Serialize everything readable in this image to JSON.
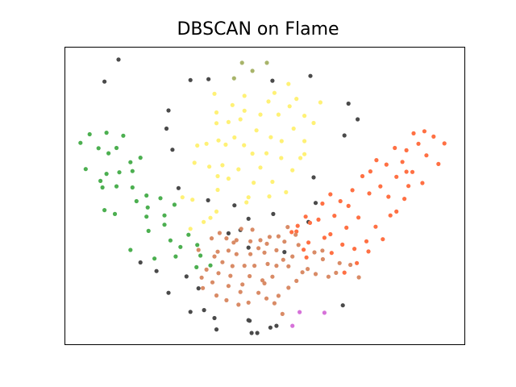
{
  "chart_data": {
    "type": "scatter",
    "title": "DBSCAN on Flame",
    "xlabel": "",
    "ylabel": "",
    "xlim": [
      0,
      100
    ],
    "ylim": [
      0,
      100
    ],
    "grid": false,
    "axes_ticks": false,
    "series": [
      {
        "color": "#4a4a4a",
        "points": [
          [
            13.5,
            95.7
          ],
          [
            10,
            88.3
          ],
          [
            31.5,
            88.8
          ],
          [
            36,
            89.1
          ],
          [
            61.5,
            90.2
          ],
          [
            52,
            88.6
          ],
          [
            71,
            80.9
          ],
          [
            26,
            78.6
          ],
          [
            25.5,
            72.5
          ],
          [
            27,
            65.4
          ],
          [
            73.3,
            75.6
          ],
          [
            70,
            70.2
          ],
          [
            28.5,
            52.5
          ],
          [
            62.3,
            56.1
          ],
          [
            35.9,
            48.4
          ],
          [
            42.5,
            46.7
          ],
          [
            46,
            42.2
          ],
          [
            52.2,
            43.8
          ],
          [
            62.8,
            47.5
          ],
          [
            44,
            38.4
          ],
          [
            61,
            41.1
          ],
          [
            41,
            37.3
          ],
          [
            46,
            32.5
          ],
          [
            55,
            31
          ],
          [
            19,
            27.5
          ],
          [
            23,
            24.6
          ],
          [
            30.5,
            22.8
          ],
          [
            33.5,
            18.8
          ],
          [
            34.9,
            11.5
          ],
          [
            26,
            17.3
          ],
          [
            31.5,
            10.9
          ],
          [
            37.5,
            8.8
          ],
          [
            38,
            5
          ],
          [
            46,
            8.1
          ],
          [
            48.2,
            3.8
          ],
          [
            46.3,
            7.9
          ],
          [
            51.5,
            5.6
          ],
          [
            46.8,
            3.8
          ],
          [
            53,
            6.2
          ],
          [
            69.6,
            13.1
          ]
        ]
      },
      {
        "color": "#a8b46a",
        "points": [
          [
            44.4,
            94.6
          ],
          [
            50.6,
            94.6
          ],
          [
            42.4,
            89.4
          ],
          [
            47,
            91.9
          ]
        ]
      },
      {
        "color": "#fff176",
        "points": [
          [
            52.5,
            84.5
          ],
          [
            56,
            87.5
          ],
          [
            58,
            82.5
          ],
          [
            53.5,
            77.2
          ],
          [
            56.3,
            80
          ],
          [
            60,
            76.8
          ],
          [
            57.3,
            72.5
          ],
          [
            60,
            68.3
          ],
          [
            62.3,
            74.4
          ],
          [
            64,
            81.3
          ],
          [
            51,
            81.6
          ],
          [
            49,
            77.2
          ],
          [
            48,
            71.9
          ],
          [
            45,
            83.5
          ],
          [
            45,
            78.5
          ],
          [
            42,
            80.4
          ],
          [
            44,
            75.6
          ],
          [
            41,
            74.7
          ],
          [
            37.5,
            84.2
          ],
          [
            38,
            77.9
          ],
          [
            38,
            74.3
          ],
          [
            38.5,
            68.5
          ],
          [
            40.3,
            67.1
          ],
          [
            42.5,
            69.5
          ],
          [
            44.9,
            66.9
          ],
          [
            47,
            64.1
          ],
          [
            50.5,
            64.2
          ],
          [
            51.6,
            69.6
          ],
          [
            54.3,
            68.3
          ],
          [
            54.2,
            62.6
          ],
          [
            49,
            59.4
          ],
          [
            47.3,
            54.3
          ],
          [
            52,
            54.6
          ],
          [
            57,
            58.5
          ],
          [
            59,
            62.6
          ],
          [
            60,
            63.9
          ],
          [
            46,
            49.4
          ],
          [
            51.2,
            49.7
          ],
          [
            55.4,
            51.1
          ],
          [
            35.5,
            67.4
          ],
          [
            33.2,
            66.8
          ],
          [
            32.5,
            61
          ],
          [
            36.2,
            59.7
          ],
          [
            39.5,
            60.2
          ],
          [
            41,
            55.7
          ],
          [
            43.5,
            58.8
          ],
          [
            38.3,
            56.5
          ],
          [
            32,
            48.6
          ],
          [
            29.5,
            49.4
          ],
          [
            38.3,
            51.9
          ],
          [
            36.5,
            42.5
          ],
          [
            34.8,
            41.1
          ],
          [
            31.5,
            38.8
          ],
          [
            38,
            44.6
          ],
          [
            45.5,
            47.7
          ]
        ]
      },
      {
        "color": "#4caf50",
        "points": [
          [
            4,
            67.7
          ],
          [
            6.3,
            70.6
          ],
          [
            10.5,
            71.1
          ],
          [
            13,
            66
          ],
          [
            14.7,
            70.1
          ],
          [
            8.5,
            65.9
          ],
          [
            11,
            64.2
          ],
          [
            5.3,
            58.9
          ],
          [
            10.5,
            57.3
          ],
          [
            13.7,
            57.8
          ],
          [
            16.5,
            61.2
          ],
          [
            19,
            62.7
          ],
          [
            17,
            58.2
          ],
          [
            13,
            53.1
          ],
          [
            17,
            52.7
          ],
          [
            20.5,
            50
          ],
          [
            24,
            49.1
          ],
          [
            27.5,
            46.9
          ],
          [
            25,
            43.3
          ],
          [
            20.8,
            46
          ],
          [
            18,
            48.1
          ],
          [
            9.5,
            52.7
          ],
          [
            9,
            54.9
          ],
          [
            12.6,
            43.8
          ],
          [
            10,
            45.1
          ],
          [
            20.5,
            42.9
          ],
          [
            21,
            38.1
          ],
          [
            25,
            40.2
          ],
          [
            26.5,
            34.9
          ],
          [
            31,
            36.8
          ],
          [
            29,
            32.7
          ],
          [
            33.2,
            33.4
          ],
          [
            34,
            29.8
          ],
          [
            33,
            25.9
          ],
          [
            36.5,
            26.5
          ],
          [
            16.5,
            31.7
          ],
          [
            22.5,
            28.8
          ],
          [
            27.8,
            29.5
          ]
        ]
      },
      {
        "color": "#ff7043",
        "points": [
          [
            95,
            67.5
          ],
          [
            93.5,
            60.6
          ],
          [
            90.5,
            63.5
          ],
          [
            88.5,
            67.4
          ],
          [
            90,
            71.6
          ],
          [
            85.5,
            65.2
          ],
          [
            87.3,
            70.9
          ],
          [
            82.6,
            66
          ],
          [
            84.5,
            61.3
          ],
          [
            87,
            57.9
          ],
          [
            89.5,
            54.2
          ],
          [
            86,
            53.2
          ],
          [
            83,
            56.3
          ],
          [
            80.5,
            60.4
          ],
          [
            78,
            61.9
          ],
          [
            76.5,
            58.1
          ],
          [
            74.5,
            56.5
          ],
          [
            81,
            49.6
          ],
          [
            83,
            44.6
          ],
          [
            85,
            48.9
          ],
          [
            81.5,
            43.3
          ],
          [
            79,
            53.1
          ],
          [
            76.2,
            50.7
          ],
          [
            72,
            51.8
          ],
          [
            71,
            46.5
          ],
          [
            73.5,
            42.6
          ],
          [
            77.8,
            39.5
          ],
          [
            79.6,
            35.3
          ],
          [
            75.5,
            34.6
          ],
          [
            72.5,
            32.1
          ],
          [
            70.5,
            39.2
          ],
          [
            67.5,
            43.2
          ],
          [
            69,
            48.1
          ],
          [
            66.5,
            50.4
          ],
          [
            64.5,
            47.3
          ],
          [
            63.5,
            41.9
          ],
          [
            65,
            35.8
          ],
          [
            61.4,
            40.8
          ],
          [
            56.8,
            37.7
          ],
          [
            58,
            37.9
          ],
          [
            61,
            34.2
          ],
          [
            59.8,
            31.8
          ],
          [
            60.5,
            29.2
          ],
          [
            66.5,
            37
          ],
          [
            69.5,
            33.5
          ],
          [
            66.8,
            30.7
          ],
          [
            70,
            24.1
          ],
          [
            76,
            31.2
          ],
          [
            73.1,
            27.3
          ],
          [
            58.3,
            39.8
          ],
          [
            60.3,
            42.9
          ],
          [
            85.5,
            58
          ],
          [
            92.3,
            69.8
          ]
        ]
      },
      {
        "color": "#d98b66",
        "points": [
          [
            40.5,
            35.6
          ],
          [
            47,
            38.5
          ],
          [
            49,
            35
          ],
          [
            53.5,
            36.3
          ],
          [
            55.8,
            39.4
          ],
          [
            57.8,
            36.8
          ],
          [
            58.5,
            33.4
          ],
          [
            57,
            29.5
          ],
          [
            56,
            26.2
          ],
          [
            53,
            26.4
          ],
          [
            52,
            22.7
          ],
          [
            50,
            20.5
          ],
          [
            46.3,
            22.9
          ],
          [
            45,
            26.4
          ],
          [
            42,
            26.3
          ],
          [
            43,
            30.3
          ],
          [
            46.5,
            30.3
          ],
          [
            50,
            30.8
          ],
          [
            53,
            31.6
          ],
          [
            55,
            34.5
          ],
          [
            51.3,
            36.1
          ],
          [
            48.5,
            32.3
          ],
          [
            46.5,
            34.6
          ],
          [
            44.2,
            38.8
          ],
          [
            43,
            35
          ],
          [
            41,
            31.5
          ],
          [
            39.5,
            27.6
          ],
          [
            38.3,
            31.1
          ],
          [
            36.8,
            35.6
          ],
          [
            41.5,
            23
          ],
          [
            38.5,
            23.9
          ],
          [
            41,
            19.6
          ],
          [
            44,
            17.6
          ],
          [
            44.5,
            20.1
          ],
          [
            48.5,
            17.3
          ],
          [
            50.5,
            15.4
          ],
          [
            52.5,
            13.8
          ],
          [
            54.5,
            10.2
          ],
          [
            53.5,
            16.3
          ],
          [
            56,
            19
          ],
          [
            58,
            21.3
          ],
          [
            59.5,
            24.2
          ],
          [
            62.8,
            23.6
          ],
          [
            64.6,
            28.6
          ],
          [
            66,
            22.7
          ],
          [
            68.8,
            27.3
          ],
          [
            71.5,
            26.7
          ],
          [
            73.6,
            22.5
          ],
          [
            64.5,
            31.5
          ],
          [
            62.5,
            30.9
          ],
          [
            33.5,
            31.7
          ],
          [
            35.5,
            25.1
          ],
          [
            37,
            20.8
          ],
          [
            40.5,
            14.8
          ],
          [
            38,
            16.4
          ],
          [
            43.5,
            13.3
          ],
          [
            46,
            14
          ],
          [
            49.5,
            21.5
          ],
          [
            47.5,
            26.4
          ],
          [
            50.8,
            27
          ],
          [
            37.5,
            29.5
          ],
          [
            34.3,
            22.4
          ],
          [
            38.8,
            37.4
          ],
          [
            42.3,
            34.2
          ],
          [
            50.6,
            33.8
          ],
          [
            54.7,
            28.4
          ],
          [
            60.8,
            25.3
          ],
          [
            67.9,
            24
          ],
          [
            34.6,
            18.9
          ]
        ]
      },
      {
        "color": "#d672d9",
        "points": [
          [
            58.8,
            10.8
          ],
          [
            65,
            10.6
          ],
          [
            57,
            6.2
          ]
        ]
      }
    ]
  }
}
